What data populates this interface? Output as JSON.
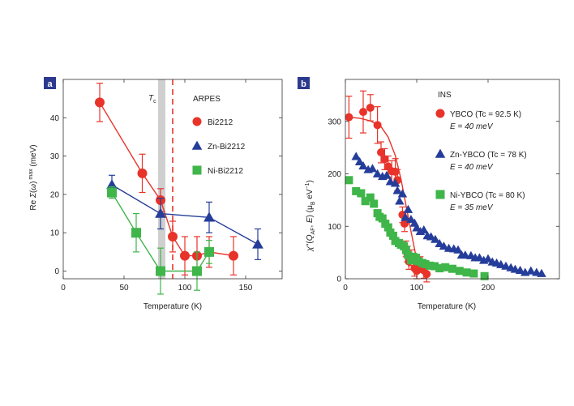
{
  "colors": {
    "red": "#e8332a",
    "blue": "#253d9a",
    "green": "#3fb54a",
    "label_bg": "#2b3a8f",
    "grey_band": "#cfcfcf"
  },
  "chart_data": [
    {
      "panel": "a",
      "type": "scatter",
      "xlabel": "Temperature (K)",
      "ylabel": "Re Σ(ω) max (meV)",
      "xlim": [
        0,
        180
      ],
      "ylim": [
        -2,
        50
      ],
      "xticks": [
        0,
        50,
        100,
        150
      ],
      "yticks": [
        0,
        10,
        20,
        30,
        40
      ],
      "tc_label": "Tc",
      "tc_band": [
        78,
        84
      ],
      "dashed_line_x": 90,
      "legend_title": "ARPES",
      "series": [
        {
          "name": "Bi2212",
          "color": "red",
          "marker": "circle",
          "connect": true,
          "points": [
            [
              30,
              44,
              5
            ],
            [
              65,
              25.5,
              5
            ],
            [
              80,
              18.5,
              3
            ],
            [
              90,
              9,
              4
            ],
            [
              100,
              4,
              5
            ],
            [
              110,
              4,
              5
            ],
            [
              120,
              5,
              4
            ],
            [
              140,
              4,
              5
            ]
          ]
        },
        {
          "name": "Zn-Bi2212",
          "color": "blue",
          "marker": "triangle",
          "connect": true,
          "points": [
            [
              40,
              22.5,
              2.5
            ],
            [
              80,
              15,
              4
            ],
            [
              120,
              14,
              4
            ],
            [
              160,
              7,
              4
            ]
          ]
        },
        {
          "name": "Ni-Bi2212",
          "color": "green",
          "marker": "square",
          "connect": true,
          "points": [
            [
              40,
              20.5,
              1.5
            ],
            [
              60,
              10,
              5
            ],
            [
              80,
              0,
              6
            ],
            [
              110,
              0,
              5
            ],
            [
              120,
              5,
              3
            ]
          ]
        }
      ]
    },
    {
      "panel": "b",
      "type": "scatter",
      "xlabel": "Temperature (K)",
      "ylabel": "χ''(QAF, E) (μB eV⁻¹)",
      "xlim": [
        0,
        300
      ],
      "ylim": [
        0,
        380
      ],
      "xticks": [
        0,
        100,
        200
      ],
      "yticks": [
        0,
        100,
        200,
        300
      ],
      "legend_title": "INS",
      "series": [
        {
          "name": "YBCO (Tc = 92.5 K)",
          "sub": "E = 40 meV",
          "color": "red",
          "marker": "circle",
          "fit": [
            [
              5,
              308
            ],
            [
              20,
              306
            ],
            [
              35,
              301
            ],
            [
              50,
              290
            ],
            [
              60,
              270
            ],
            [
              70,
              235
            ],
            [
              78,
              190
            ],
            [
              85,
              140
            ],
            [
              92,
              90
            ],
            [
              98,
              50
            ],
            [
              104,
              25
            ],
            [
              115,
              15
            ]
          ],
          "points": [
            [
              5,
              308,
              40
            ],
            [
              25,
              318,
              40
            ],
            [
              35,
              326,
              25
            ],
            [
              45,
              293,
              35
            ],
            [
              50,
              241,
              20
            ],
            [
              55,
              228,
              20
            ],
            [
              60,
              214,
              20
            ],
            [
              65,
              205,
              20
            ],
            [
              70,
              204,
              25
            ],
            [
              73,
              188,
              20
            ],
            [
              80,
              122,
              15
            ],
            [
              83,
              105,
              15
            ],
            [
              85,
              57,
              15
            ],
            [
              87,
              47,
              15
            ],
            [
              89,
              33,
              15
            ],
            [
              92,
              40,
              15
            ],
            [
              97,
              20,
              15
            ],
            [
              100,
              15,
              15
            ],
            [
              105,
              27,
              15
            ],
            [
              110,
              16,
              15
            ],
            [
              114,
              9,
              15
            ]
          ]
        },
        {
          "name": "Zn-YBCO (Tc = 78 K)",
          "sub": "E = 40 meV",
          "color": "blue",
          "marker": "triangle",
          "points": [
            [
              15,
              233
            ],
            [
              20,
              223
            ],
            [
              25,
              215
            ],
            [
              32,
              208
            ],
            [
              38,
              210
            ],
            [
              45,
              200
            ],
            [
              52,
              195
            ],
            [
              58,
              197
            ],
            [
              63,
              185
            ],
            [
              70,
              182
            ],
            [
              73,
              168
            ],
            [
              76,
              148
            ],
            [
              80,
              162
            ],
            [
              84,
              117
            ],
            [
              88,
              132
            ],
            [
              92,
              113
            ],
            [
              97,
              106
            ],
            [
              100,
              97
            ],
            [
              105,
              90
            ],
            [
              110,
              93
            ],
            [
              115,
              82
            ],
            [
              120,
              80
            ],
            [
              126,
              75
            ],
            [
              132,
              67
            ],
            [
              138,
              62
            ],
            [
              145,
              58
            ],
            [
              152,
              57
            ],
            [
              158,
              55
            ],
            [
              163,
              45
            ],
            [
              168,
              45
            ],
            [
              176,
              44
            ],
            [
              182,
              40
            ],
            [
              188,
              40
            ],
            [
              194,
              35
            ],
            [
              200,
              38
            ],
            [
              206,
              32
            ],
            [
              212,
              30
            ],
            [
              218,
              27
            ],
            [
              225,
              24
            ],
            [
              232,
              21
            ],
            [
              238,
              18
            ],
            [
              245,
              16
            ],
            [
              252,
              12
            ],
            [
              260,
              15
            ],
            [
              268,
              12
            ],
            [
              275,
              10
            ]
          ]
        },
        {
          "name": "Ni-YBCO (Tc = 80 K)",
          "sub": "E = 35 meV",
          "color": "green",
          "marker": "square",
          "points": [
            [
              5,
              188
            ],
            [
              15,
              167
            ],
            [
              22,
              163
            ],
            [
              28,
              148
            ],
            [
              35,
              155
            ],
            [
              40,
              143
            ],
            [
              45,
              125
            ],
            [
              48,
              118
            ],
            [
              52,
              115
            ],
            [
              56,
              105
            ],
            [
              60,
              98
            ],
            [
              63,
              88
            ],
            [
              67,
              82
            ],
            [
              70,
              72
            ],
            [
              75,
              68
            ],
            [
              78,
              65
            ],
            [
              82,
              62
            ],
            [
              85,
              55
            ],
            [
              88,
              45
            ],
            [
              92,
              35
            ],
            [
              95,
              42
            ],
            [
              99,
              40
            ],
            [
              103,
              33
            ],
            [
              108,
              30
            ],
            [
              112,
              28
            ],
            [
              118,
              25
            ],
            [
              125,
              24
            ],
            [
              132,
              20
            ],
            [
              140,
              22
            ],
            [
              150,
              19
            ],
            [
              160,
              15
            ],
            [
              170,
              12
            ],
            [
              180,
              10
            ],
            [
              195,
              5
            ]
          ]
        }
      ]
    }
  ]
}
